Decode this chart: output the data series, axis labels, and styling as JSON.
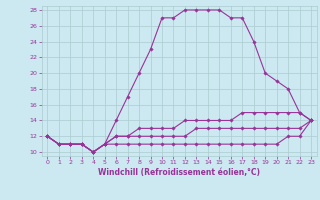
{
  "xlabel": "Windchill (Refroidissement éolien,°C)",
  "background_color": "#cce8f0",
  "grid_color": "#aaccd0",
  "line_color": "#993399",
  "xlim": [
    -0.5,
    23.5
  ],
  "ylim": [
    9.5,
    28.5
  ],
  "xticks": [
    0,
    1,
    2,
    3,
    4,
    5,
    6,
    7,
    8,
    9,
    10,
    11,
    12,
    13,
    14,
    15,
    16,
    17,
    18,
    19,
    20,
    21,
    22,
    23
  ],
  "yticks": [
    10,
    12,
    14,
    16,
    18,
    20,
    22,
    24,
    26,
    28
  ],
  "curve1_x": [
    0,
    1,
    2,
    3,
    4,
    5,
    6,
    7,
    8,
    9,
    10,
    11,
    12,
    13,
    14,
    15,
    16,
    17,
    18,
    19,
    20,
    21,
    22,
    23
  ],
  "curve1_y": [
    12,
    11,
    11,
    11,
    10,
    11,
    14,
    17,
    20,
    23,
    27,
    27,
    28,
    28,
    28,
    28,
    27,
    27,
    24,
    20,
    19,
    18,
    15,
    14
  ],
  "curve2_x": [
    0,
    1,
    2,
    3,
    4,
    5,
    6,
    7,
    8,
    9,
    10,
    11,
    12,
    13,
    14,
    15,
    16,
    17,
    18,
    19,
    20,
    21,
    22,
    23
  ],
  "curve2_y": [
    12,
    11,
    11,
    11,
    10,
    11,
    12,
    12,
    13,
    13,
    13,
    13,
    14,
    14,
    14,
    14,
    14,
    15,
    15,
    15,
    15,
    15,
    15,
    14
  ],
  "curve3_x": [
    0,
    1,
    2,
    3,
    4,
    5,
    6,
    7,
    8,
    9,
    10,
    11,
    12,
    13,
    14,
    15,
    16,
    17,
    18,
    19,
    20,
    21,
    22,
    23
  ],
  "curve3_y": [
    12,
    11,
    11,
    11,
    10,
    11,
    12,
    12,
    12,
    12,
    12,
    12,
    12,
    13,
    13,
    13,
    13,
    13,
    13,
    13,
    13,
    13,
    13,
    14
  ],
  "curve4_x": [
    0,
    1,
    2,
    3,
    4,
    5,
    6,
    7,
    8,
    9,
    10,
    11,
    12,
    13,
    14,
    15,
    16,
    17,
    18,
    19,
    20,
    21,
    22,
    23
  ],
  "curve4_y": [
    12,
    11,
    11,
    11,
    10,
    11,
    11,
    11,
    11,
    11,
    11,
    11,
    11,
    11,
    11,
    11,
    11,
    11,
    11,
    11,
    11,
    12,
    12,
    14
  ]
}
